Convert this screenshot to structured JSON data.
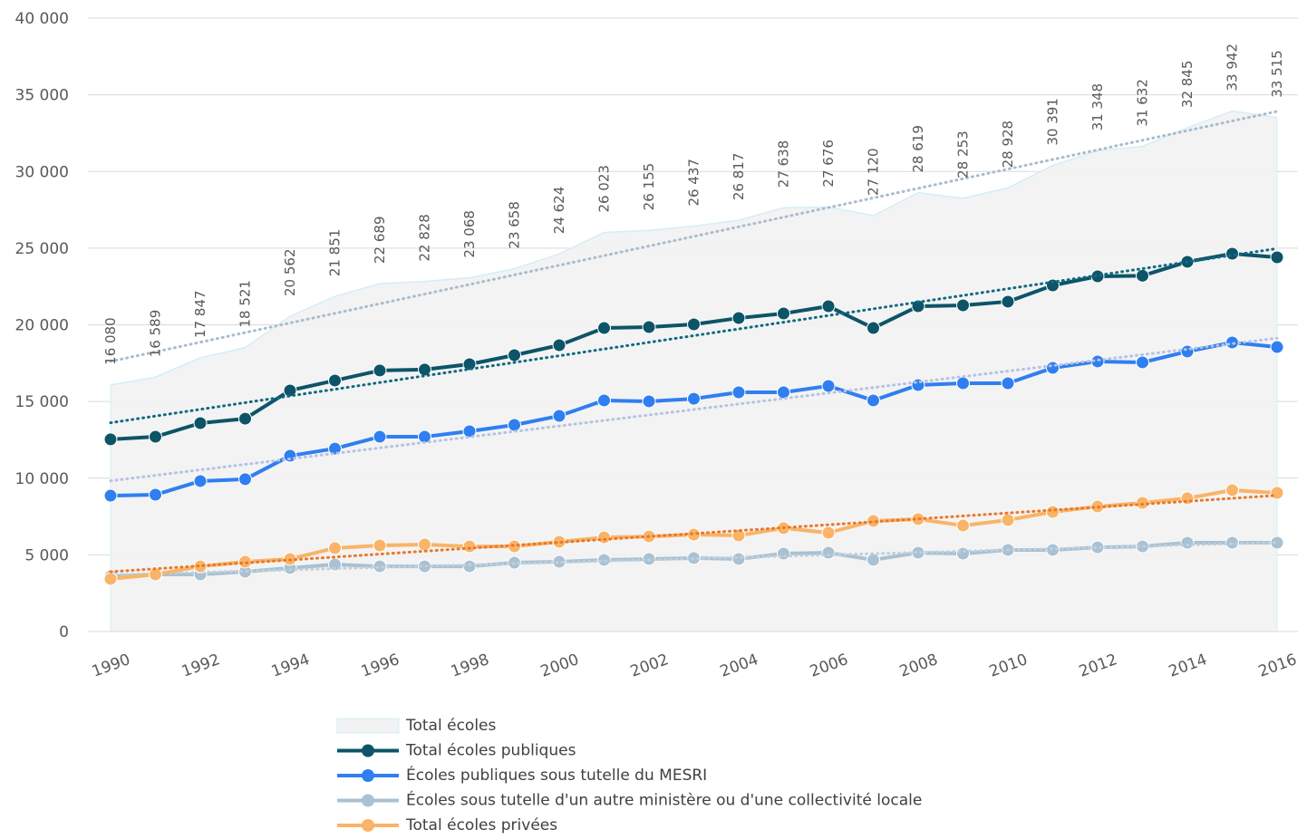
{
  "chart_data": {
    "type": "line",
    "x": [
      1990,
      1991,
      1992,
      1993,
      1994,
      1995,
      1996,
      1997,
      1998,
      1999,
      2000,
      2001,
      2002,
      2003,
      2004,
      2005,
      2006,
      2007,
      2008,
      2009,
      2010,
      2011,
      2012,
      2013,
      2014,
      2015,
      2016
    ],
    "xlim": [
      1990,
      2016
    ],
    "xticks": [
      1990,
      1992,
      1994,
      1996,
      1998,
      2000,
      2002,
      2004,
      2006,
      2008,
      2010,
      2012,
      2014,
      2016
    ],
    "ylim": [
      0,
      40000
    ],
    "yticks": [
      0,
      {
        "value": 5000,
        "label": "5 000"
      },
      {
        "value": 10000,
        "label": "10 000"
      },
      {
        "value": 15000,
        "label": "15 000"
      },
      {
        "value": 20000,
        "label": "20 000"
      },
      {
        "value": 25000,
        "label": "25 000"
      },
      {
        "value": 30000,
        "label": "30 000"
      },
      {
        "value": 35000,
        "label": "35 000"
      },
      {
        "value": 40000,
        "label": "40 000"
      }
    ],
    "grid": true,
    "legend": "bottom",
    "series": [
      {
        "name": "Total écoles",
        "type": "area",
        "color": "#f2f2f2",
        "edge_color": "#d3eef7",
        "trendline": true,
        "trendline_color": "#a9bccd",
        "values": [
          16080,
          16589,
          17847,
          18521,
          20562,
          21851,
          22689,
          22828,
          23068,
          23658,
          24624,
          26023,
          26155,
          26437,
          26817,
          27638,
          27676,
          27120,
          28619,
          28253,
          28928,
          30391,
          31348,
          31632,
          32845,
          33942,
          33515
        ],
        "value_labels": [
          "16 080",
          "16 589",
          "17 847",
          "18 521",
          "20 562",
          "21 851",
          "22 689",
          "22 828",
          "23 068",
          "23 658",
          "24 624",
          "26 023",
          "26 155",
          "26 437",
          "26 817",
          "27 638",
          "27 676",
          "27 120",
          "28 619",
          "28 253",
          "28 928",
          "30 391",
          "31 348",
          "31 632",
          "32 845",
          "33 942",
          "33 515"
        ]
      },
      {
        "name": "Total écoles publiques",
        "color": "#0d5468",
        "trendline": true,
        "trendline_color": "#0f6a80",
        "values": [
          12530,
          12700,
          13590,
          13880,
          15720,
          16370,
          17020,
          17080,
          17430,
          18020,
          18670,
          19790,
          19850,
          20030,
          20440,
          20740,
          21210,
          19790,
          21210,
          21270,
          21510,
          22570,
          23160,
          23200,
          24110,
          24640,
          24400
        ]
      },
      {
        "name": "Écoles publiques sous tutelle du MESRI",
        "color": "#2f7ff0",
        "trendline": true,
        "trendline_color": "#b4c2e2",
        "values": [
          8860,
          8920,
          9810,
          9930,
          11460,
          11930,
          12700,
          12700,
          13060,
          13470,
          14060,
          15070,
          15010,
          15180,
          15600,
          15600,
          16010,
          15070,
          16070,
          16190,
          16190,
          17190,
          17610,
          17550,
          18260,
          18850,
          18550
        ]
      },
      {
        "name": "Écoles sous tutelle d'un autre ministère ou d'une collectivité locale",
        "color": "#a9c1d2",
        "trendline": true,
        "trendline_color": "#c0d0dc",
        "values": [
          3600,
          3720,
          3720,
          3900,
          4140,
          4370,
          4250,
          4250,
          4250,
          4490,
          4550,
          4670,
          4730,
          4790,
          4730,
          5080,
          5140,
          4670,
          5140,
          5080,
          5320,
          5320,
          5490,
          5550,
          5790,
          5790,
          5790
        ]
      },
      {
        "name": "Total écoles privées",
        "color": "#f9b468",
        "trendline": true,
        "trendline_color": "#e8782a",
        "values": [
          3430,
          3720,
          4250,
          4550,
          4730,
          5440,
          5610,
          5670,
          5550,
          5550,
          5850,
          6140,
          6200,
          6320,
          6260,
          6740,
          6440,
          7210,
          7330,
          6910,
          7270,
          7800,
          8150,
          8390,
          8690,
          9220,
          9040
        ]
      }
    ]
  }
}
